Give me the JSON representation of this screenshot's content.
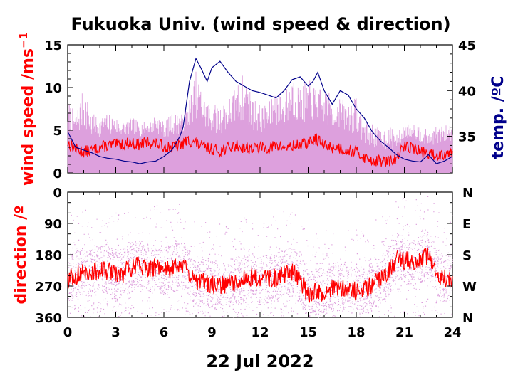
{
  "colors": {
    "wind_avg": "#ff0000",
    "wind_gust": "#dda0dd",
    "temperature": "#00008b",
    "direction_avg": "#ff0000",
    "direction_scatter": "#dda0dd",
    "axis": "#000000"
  },
  "chart_data": [
    {
      "type": "line",
      "title": "Fukuoka Univ. (wind speed & direction)",
      "ylabel": "wind speed /ms",
      "ylabel_sup": "−1",
      "y2label": "temp. /ºC",
      "xlim": [
        0,
        24
      ],
      "ylim": [
        0,
        15
      ],
      "y2lim": [
        31,
        45
      ],
      "y_ticks": [
        0,
        5,
        10,
        15
      ],
      "y2_ticks": [
        35,
        40,
        45
      ],
      "series": [
        {
          "key": "gust",
          "x": [
            0,
            0.5,
            1,
            1.5,
            2,
            2.5,
            3,
            3.5,
            4,
            4.5,
            5,
            5.5,
            6,
            6.5,
            7,
            7.5,
            8,
            8.5,
            9,
            9.5,
            10,
            10.5,
            11,
            11.5,
            12,
            12.5,
            13,
            13.5,
            14,
            14.5,
            15,
            15.5,
            16,
            16.5,
            17,
            17.5,
            18,
            18.5,
            19,
            19.5,
            20,
            20.5,
            21,
            21.5,
            22,
            22.5,
            23,
            23.5,
            24
          ],
          "values": [
            8.5,
            7,
            10,
            7,
            6.5,
            7,
            6.5,
            6,
            6.5,
            6,
            6,
            7,
            6,
            7,
            7,
            8,
            12,
            9,
            8,
            8,
            9,
            10,
            12,
            9,
            8,
            8,
            10,
            9,
            12,
            10,
            11,
            10,
            10,
            9,
            9,
            8,
            9,
            6,
            6,
            5,
            5.5,
            5,
            5.5,
            6,
            5.5,
            5,
            5.5,
            5.5,
            6
          ]
        },
        {
          "key": "average",
          "x": [
            0,
            0.5,
            1,
            1.5,
            2,
            2.5,
            3,
            3.5,
            4,
            4.5,
            5,
            5.5,
            6,
            6.5,
            7,
            7.5,
            8,
            8.5,
            9,
            9.5,
            10,
            10.5,
            11,
            11.5,
            12,
            12.5,
            13,
            13.5,
            14,
            14.5,
            15,
            15.5,
            16,
            16.5,
            17,
            17.5,
            18,
            18.5,
            19,
            19.5,
            20,
            20.5,
            21,
            21.5,
            22,
            22.5,
            23,
            23.5,
            24
          ],
          "values": [
            3.5,
            2.8,
            2.5,
            2.6,
            3.0,
            3.2,
            3.3,
            3.4,
            3.5,
            3.3,
            3.6,
            3.4,
            3.1,
            3.0,
            3.2,
            3.8,
            3.5,
            3.0,
            2.8,
            2.6,
            2.9,
            3.2,
            3.0,
            2.8,
            3.0,
            2.9,
            3.2,
            3.0,
            3.1,
            3.3,
            3.5,
            4.0,
            3.2,
            3.0,
            2.9,
            2.7,
            2.5,
            1.8,
            1.5,
            1.4,
            1.3,
            1.6,
            3.2,
            3.0,
            2.5,
            2.2,
            2.0,
            2.3,
            2.5
          ]
        },
        {
          "key": "temperature",
          "axis": "y2",
          "x": [
            0,
            0.5,
            1,
            1.5,
            2,
            2.5,
            3,
            3.5,
            4,
            4.5,
            5,
            5.5,
            6,
            6.5,
            7,
            7.2,
            7.6,
            8,
            8.3,
            8.7,
            9,
            9.5,
            10,
            10.5,
            11,
            11.5,
            12,
            12.5,
            13,
            13.5,
            14,
            14.5,
            15,
            15.3,
            15.6,
            16,
            16.5,
            17,
            17.5,
            18,
            18.5,
            19,
            19.5,
            20,
            20.5,
            21,
            21.5,
            22,
            22.5,
            23,
            23.5,
            24
          ],
          "values": [
            35.5,
            33.8,
            33.5,
            33.2,
            32.8,
            32.6,
            32.5,
            32.3,
            32.2,
            32.0,
            32.2,
            32.3,
            32.8,
            33.5,
            35.0,
            36.0,
            41.0,
            43.5,
            42.5,
            41.0,
            42.5,
            43.2,
            42.0,
            41.0,
            40.5,
            40.0,
            39.8,
            39.5,
            39.2,
            40.0,
            41.2,
            41.5,
            40.5,
            41.0,
            42.0,
            40.0,
            38.5,
            40.0,
            39.5,
            38.0,
            37.0,
            35.5,
            34.5,
            33.8,
            33.0,
            32.5,
            32.3,
            32.2,
            33.0,
            32.0,
            32.3,
            32.8
          ]
        }
      ]
    },
    {
      "type": "scatter",
      "ylabel": "direction /º",
      "xlabel": "22 Jul 2022",
      "xlim": [
        0,
        24
      ],
      "ylim": [
        360,
        0
      ],
      "x_ticks": [
        0,
        3,
        6,
        9,
        12,
        15,
        18,
        21,
        24
      ],
      "y_ticks": [
        0,
        90,
        180,
        270,
        360
      ],
      "y2_ticks": [
        "N",
        "E",
        "S",
        "W",
        "N"
      ],
      "series": [
        {
          "key": "average",
          "x": [
            0,
            0.5,
            1,
            1.5,
            2,
            2.5,
            3,
            3.5,
            4,
            4.5,
            5,
            5.5,
            6,
            6.5,
            7,
            7.5,
            8,
            8.5,
            9,
            9.5,
            10,
            10.5,
            11,
            11.5,
            12,
            12.5,
            13,
            13.5,
            14,
            14.5,
            15,
            15.5,
            16,
            16.5,
            17,
            17.5,
            18,
            18.5,
            19,
            19.5,
            20,
            20.5,
            21,
            21.5,
            22,
            22.5,
            23,
            23.5,
            24
          ],
          "values": [
            250,
            240,
            230,
            235,
            220,
            225,
            240,
            230,
            215,
            210,
            220,
            215,
            225,
            220,
            210,
            225,
            260,
            255,
            265,
            270,
            262,
            258,
            250,
            245,
            255,
            250,
            245,
            235,
            230,
            250,
            300,
            285,
            290,
            275,
            270,
            280,
            285,
            280,
            265,
            250,
            230,
            190,
            195,
            200,
            195,
            180,
            230,
            250,
            245
          ]
        }
      ]
    }
  ]
}
